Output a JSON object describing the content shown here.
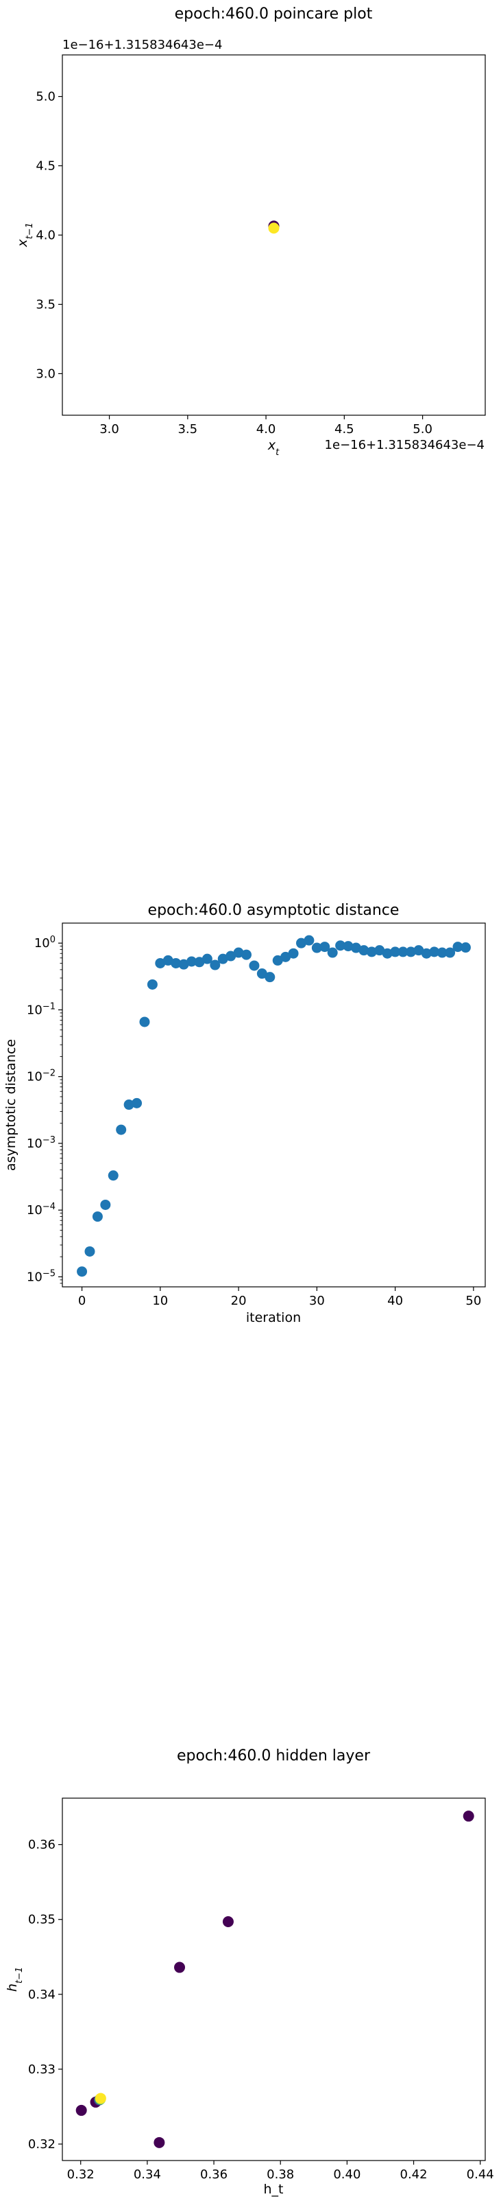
{
  "chart_data": [
    {
      "type": "scatter",
      "title": "epoch:460.0 poincare plot",
      "xlabel": "x_t",
      "ylabel": "x_{t-1}",
      "offset_text_y": "1e−16+1.315834643e−4",
      "offset_text_x": "1e−16+1.315834643e−4",
      "xlim": [
        2.7,
        5.4
      ],
      "ylim": [
        2.7,
        5.3
      ],
      "xticks": [
        3.0,
        3.5,
        4.0,
        4.5,
        5.0
      ],
      "xtick_labels": [
        "3.0",
        "3.5",
        "4.0",
        "4.5",
        "5.0"
      ],
      "yticks": [
        3.0,
        3.5,
        4.0,
        4.5,
        5.0
      ],
      "ytick_labels": [
        "3.0",
        "3.5",
        "4.0",
        "4.5",
        "5.0"
      ],
      "points": [
        {
          "x": 4.05,
          "y": 4.05,
          "color": "#440154"
        },
        {
          "x": 4.05,
          "y": 4.05,
          "color": "#fde725"
        }
      ]
    },
    {
      "type": "scatter",
      "title": "epoch:460.0 asymptotic distance",
      "xlabel": "iteration",
      "ylabel": "asymptotic distance",
      "yscale": "log",
      "xlim": [
        -2.5,
        51.5
      ],
      "ylim_log10": [
        -5.15,
        0.3
      ],
      "xticks": [
        0,
        10,
        20,
        30,
        40,
        50
      ],
      "xtick_labels": [
        "0",
        "10",
        "20",
        "30",
        "40",
        "50"
      ],
      "yticks_log10": [
        -5,
        -4,
        -3,
        -2,
        -1,
        0
      ],
      "ytick_mantissa": "10",
      "ytick_exponents": [
        "−5",
        "−4",
        "−3",
        "−2",
        "−1",
        "0"
      ],
      "color": "#1f77b4",
      "x": [
        0,
        1,
        2,
        3,
        4,
        5,
        6,
        7,
        8,
        9,
        10,
        11,
        12,
        13,
        14,
        15,
        16,
        17,
        18,
        19,
        20,
        21,
        22,
        23,
        24,
        25,
        26,
        27,
        28,
        29,
        30,
        31,
        32,
        33,
        34,
        35,
        36,
        37,
        38,
        39,
        40,
        41,
        42,
        43,
        44,
        45,
        46,
        47,
        48,
        49
      ],
      "y": [
        1.2e-05,
        2.4e-05,
        8e-05,
        0.00012,
        0.00033,
        0.0016,
        0.0038,
        0.004,
        0.066,
        0.24,
        0.5,
        0.55,
        0.5,
        0.48,
        0.53,
        0.52,
        0.58,
        0.47,
        0.58,
        0.64,
        0.72,
        0.67,
        0.46,
        0.35,
        0.31,
        0.55,
        0.62,
        0.7,
        1.0,
        1.1,
        0.85,
        0.88,
        0.72,
        0.92,
        0.9,
        0.85,
        0.78,
        0.74,
        0.78,
        0.7,
        0.74,
        0.74,
        0.74,
        0.78,
        0.7,
        0.74,
        0.72,
        0.72,
        0.88,
        0.86
      ]
    },
    {
      "type": "scatter",
      "title": "epoch:460.0 hidden layer",
      "xlabel": "h_t",
      "ylabel": "h_{t-1}",
      "xlim": [
        0.3145,
        0.4415
      ],
      "ylim": [
        0.3178,
        0.3662
      ],
      "xticks": [
        0.32,
        0.34,
        0.36,
        0.38,
        0.4,
        0.42,
        0.44
      ],
      "xtick_labels": [
        "0.32",
        "0.34",
        "0.36",
        "0.38",
        "0.40",
        "0.42",
        "0.44"
      ],
      "yticks": [
        0.32,
        0.33,
        0.34,
        0.35,
        0.36
      ],
      "ytick_labels": [
        "0.32",
        "0.33",
        "0.34",
        "0.35",
        "0.36"
      ],
      "points": [
        {
          "x": 0.4365,
          "y": 0.3638,
          "color": "#440154"
        },
        {
          "x": 0.3643,
          "y": 0.3497,
          "color": "#440154"
        },
        {
          "x": 0.3497,
          "y": 0.3436,
          "color": "#440154"
        },
        {
          "x": 0.3436,
          "y": 0.3202,
          "color": "#440154"
        },
        {
          "x": 0.3202,
          "y": 0.3245,
          "color": "#440154"
        },
        {
          "x": 0.3245,
          "y": 0.3256,
          "color": "#440154"
        },
        {
          "x": 0.3256,
          "y": 0.3259,
          "color": "#3b528b"
        },
        {
          "x": 0.3259,
          "y": 0.326,
          "color": "#5ec962"
        },
        {
          "x": 0.326,
          "y": 0.3261,
          "color": "#fde725"
        }
      ]
    }
  ]
}
